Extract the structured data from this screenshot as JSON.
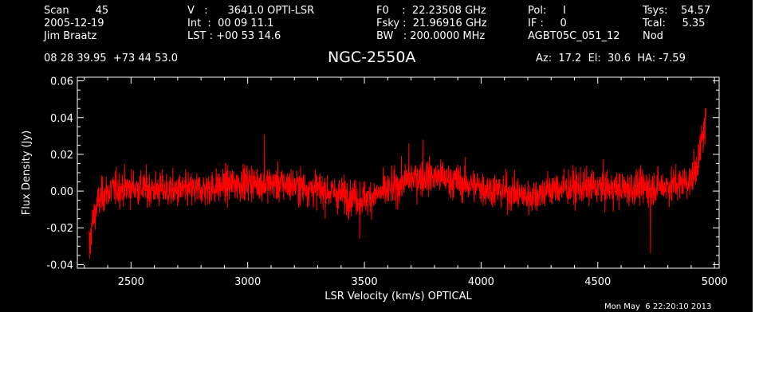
{
  "header": {
    "col1": [
      "Scan        45",
      "2005-12-19",
      "Jim Braatz"
    ],
    "col2": [
      "V   :      3641.0 OPTI-LSR",
      "Int  :  00 09 11.1",
      "LST : +00 53 14.6"
    ],
    "col3": [
      "F0    :  22.23508 GHz",
      "Fsky :  21.96916 GHz",
      "BW   : 200.0000 MHz"
    ],
    "col4": [
      "Pol:     I",
      "IF :     0",
      "AGBT05C_051_12"
    ],
    "col5": [
      "Tsys:    54.57",
      "Tcal:     5.35",
      "Nod"
    ],
    "coords": "08 28 39.95  +73 44 53.0",
    "object": "NGC-2550A",
    "pointing": "Az:  17.2  El:  30.6  HA: -7.59"
  },
  "timestamp": "Mon May  6 22:20:10 2013",
  "chart_data": {
    "type": "line",
    "title": "NGC-2550A",
    "xlabel": "LSR Velocity (km/s) OPTICAL",
    "ylabel": "Flux Density (Jy)",
    "xlim": [
      2270,
      5020
    ],
    "ylim": [
      -0.042,
      0.062
    ],
    "xticks": [
      2500,
      3000,
      3500,
      4000,
      4500,
      5000
    ],
    "yticks": [
      -0.04,
      -0.02,
      0.0,
      0.02,
      0.04,
      0.06
    ],
    "ytick_labels": [
      "-0.04",
      "-0.02",
      "0.00",
      "0.02",
      "0.04",
      "0.06"
    ],
    "grid": false,
    "series": [
      {
        "color": "#ff0000",
        "baseline_x": [
          2320,
          2330,
          2345,
          2360,
          2380,
          2420,
          2500,
          2600,
          2700,
          2800,
          2900,
          3000,
          3100,
          3200,
          3300,
          3400,
          3500,
          3600,
          3700,
          3800,
          3900,
          4000,
          4100,
          4200,
          4300,
          4400,
          4500,
          4600,
          4700,
          4800,
          4850,
          4900,
          4920,
          4940,
          4955,
          4965
        ],
        "baseline_y": [
          -0.028,
          -0.02,
          -0.012,
          -0.006,
          -0.002,
          0.001,
          0.002,
          0.001,
          0.0,
          0.001,
          0.003,
          0.005,
          0.004,
          0.003,
          0.001,
          -0.002,
          -0.004,
          0.0,
          0.007,
          0.008,
          0.005,
          0.002,
          0.0,
          -0.003,
          0.001,
          0.002,
          0.002,
          0.001,
          0.002,
          0.003,
          0.004,
          0.006,
          0.012,
          0.022,
          0.033,
          0.038
        ],
        "noise_rms": 0.008,
        "peaks": [
          {
            "x": 4963,
            "y": 0.044
          },
          {
            "x": 4957,
            "y": 0.04
          },
          {
            "x": 4945,
            "y": 0.036
          },
          {
            "x": 2322,
            "y": -0.037
          },
          {
            "x": 2326,
            "y": -0.034
          },
          {
            "x": 4726,
            "y": -0.034
          },
          {
            "x": 3072,
            "y": 0.031
          },
          {
            "x": 3750,
            "y": 0.028
          },
          {
            "x": 3690,
            "y": 0.026
          },
          {
            "x": 3480,
            "y": -0.026
          }
        ]
      }
    ]
  }
}
